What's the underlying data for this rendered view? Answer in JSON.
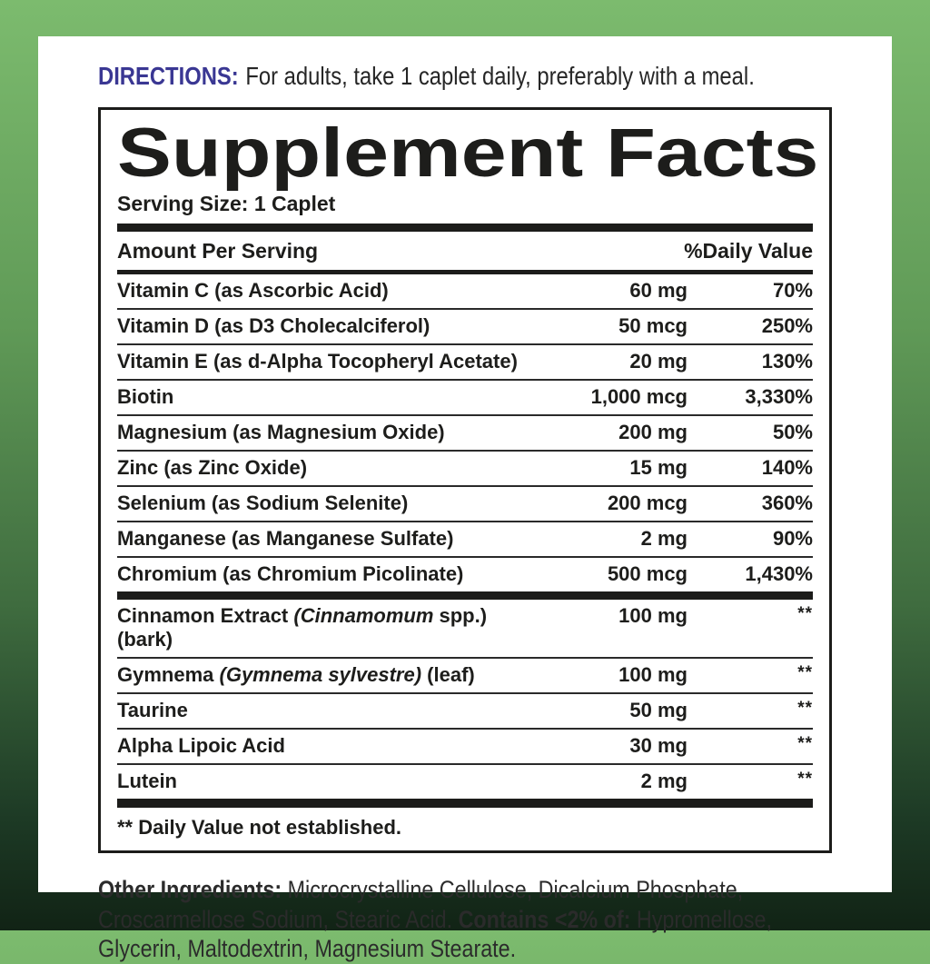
{
  "colors": {
    "accent_directions": "#3a3793",
    "panel_text": "#1d1d1b",
    "body_text": "#2b2b2b",
    "card_bg": "#ffffff",
    "bg_gradient_top": "#7cbb6e",
    "bg_gradient_bottom": "#112315"
  },
  "directions": {
    "label": "DIRECTIONS:",
    "text": "For adults, take 1 caplet daily, preferably with a meal."
  },
  "panel": {
    "title": "Supplement Facts",
    "serving_size": "Serving Size: 1 Caplet",
    "columns": {
      "amount_header": "Amount Per Serving",
      "dv_header": "%Daily Value"
    },
    "main_rows": [
      {
        "name": [
          {
            "t": "Vitamin C (as Ascorbic Acid)",
            "i": false
          }
        ],
        "amount": "60 mg",
        "dv": "70%"
      },
      {
        "name": [
          {
            "t": "Vitamin D (as D3 Cholecalciferol)",
            "i": false
          }
        ],
        "amount": "50 mcg",
        "dv": "250%"
      },
      {
        "name": [
          {
            "t": "Vitamin E (as d-Alpha Tocopheryl Acetate)",
            "i": false
          }
        ],
        "amount": "20 mg",
        "dv": "130%"
      },
      {
        "name": [
          {
            "t": "Biotin",
            "i": false
          }
        ],
        "amount": "1,000 mcg",
        "dv": "3,330%"
      },
      {
        "name": [
          {
            "t": "Magnesium (as Magnesium Oxide)",
            "i": false
          }
        ],
        "amount": "200 mg",
        "dv": "50%"
      },
      {
        "name": [
          {
            "t": "Zinc (as Zinc Oxide)",
            "i": false
          }
        ],
        "amount": "15 mg",
        "dv": "140%"
      },
      {
        "name": [
          {
            "t": "Selenium (as Sodium Selenite)",
            "i": false
          }
        ],
        "amount": "200 mcg",
        "dv": "360%"
      },
      {
        "name": [
          {
            "t": "Manganese (as Manganese Sulfate)",
            "i": false
          }
        ],
        "amount": "2 mg",
        "dv": "90%"
      },
      {
        "name": [
          {
            "t": "Chromium (as Chromium Picolinate)",
            "i": false
          }
        ],
        "amount": "500 mcg",
        "dv": "1,430%"
      }
    ],
    "botanical_rows": [
      {
        "name": [
          {
            "t": "Cinnamon Extract ",
            "i": false
          },
          {
            "t": "(Cinnamomum",
            "i": true
          },
          {
            "t": " spp.) (bark)",
            "i": false
          }
        ],
        "amount": "100 mg",
        "dv": "**"
      },
      {
        "name": [
          {
            "t": "Gymnema ",
            "i": false
          },
          {
            "t": "(Gymnema sylvestre)",
            "i": true
          },
          {
            "t": " (leaf)",
            "i": false
          }
        ],
        "amount": "100 mg",
        "dv": "**"
      },
      {
        "name": [
          {
            "t": "Taurine",
            "i": false
          }
        ],
        "amount": "50 mg",
        "dv": "**"
      },
      {
        "name": [
          {
            "t": "Alpha Lipoic Acid",
            "i": false
          }
        ],
        "amount": "30 mg",
        "dv": "**"
      },
      {
        "name": [
          {
            "t": "Lutein",
            "i": false
          }
        ],
        "amount": "2 mg",
        "dv": "**"
      }
    ],
    "footnote": "** Daily Value not established."
  },
  "other_ingredients": {
    "segments": [
      {
        "t": "Other Ingredients: ",
        "b": true
      },
      {
        "t": "Microcrystalline Cellulose, Dicalcium Phosphate, Croscarmellose Sodium, Stearic Acid. ",
        "b": false
      },
      {
        "t": "Contains <2% of: ",
        "b": true
      },
      {
        "t": "Hypromellose, Glycerin, Maltodextrin, Magnesium Stearate.",
        "b": false
      }
    ]
  }
}
